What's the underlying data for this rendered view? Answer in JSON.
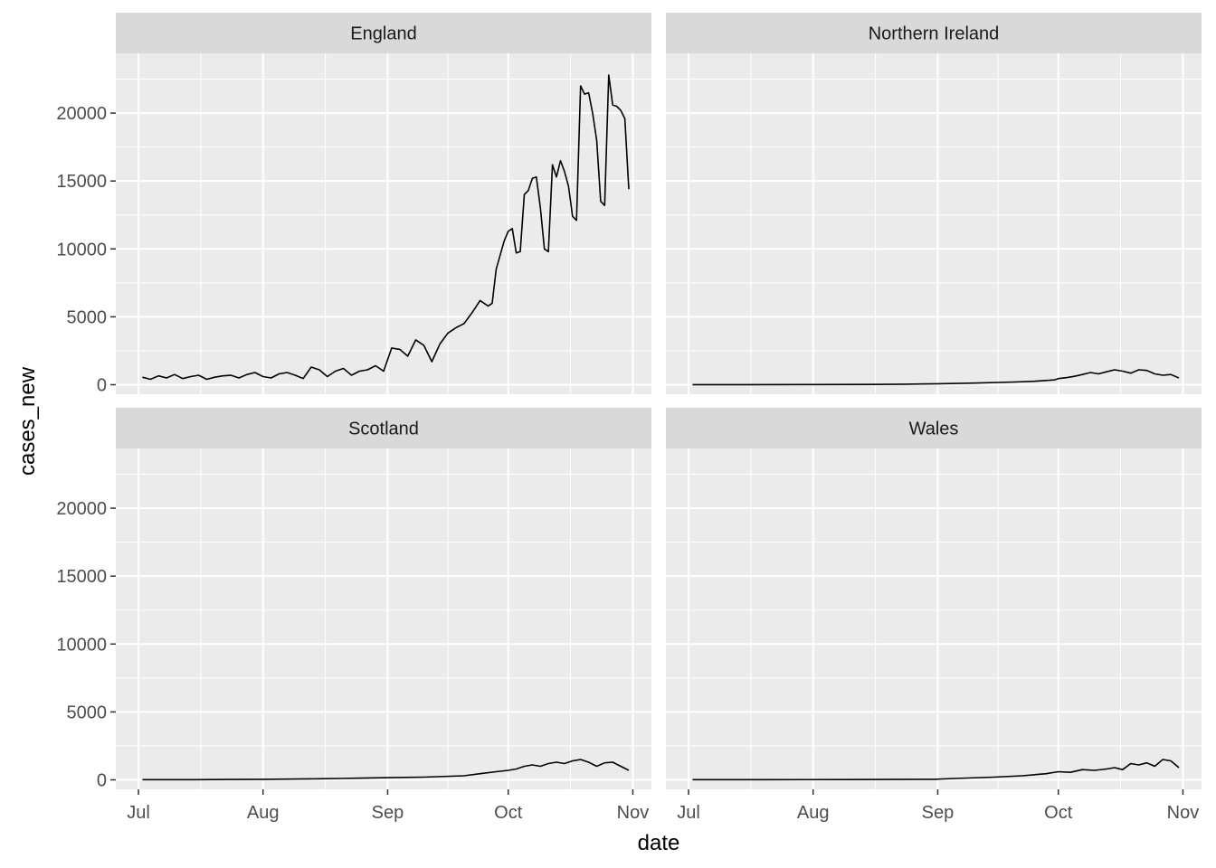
{
  "chart_data": {
    "type": "line",
    "facet": "grid-2x2",
    "xlabel": "date",
    "ylabel": "cases_new",
    "xlim": [
      "2020-07-01",
      "2020-10-31"
    ],
    "ylim": [
      -700,
      24400
    ],
    "x_ticks": [
      {
        "date": "2020-07-01",
        "label": "Jul"
      },
      {
        "date": "2020-08-01",
        "label": "Aug"
      },
      {
        "date": "2020-09-01",
        "label": "Sep"
      },
      {
        "date": "2020-10-01",
        "label": "Oct"
      },
      {
        "date": "2020-11-01",
        "label": "Nov"
      }
    ],
    "y_ticks": [
      0,
      5000,
      10000,
      15000,
      20000
    ],
    "y_tick_labels": [
      "0",
      "5000",
      "10000",
      "15000",
      "20000"
    ],
    "grid": true,
    "colors": {
      "panel": "#ebebeb",
      "strip": "#d9d9d9",
      "line": "#000000",
      "grid": "#ffffff",
      "axis_text": "#4d4d4d"
    },
    "panels": [
      {
        "name": "England",
        "x": [
          "2020-07-02",
          "2020-07-04",
          "2020-07-06",
          "2020-07-08",
          "2020-07-10",
          "2020-07-12",
          "2020-07-14",
          "2020-07-16",
          "2020-07-18",
          "2020-07-20",
          "2020-07-22",
          "2020-07-24",
          "2020-07-26",
          "2020-07-28",
          "2020-07-30",
          "2020-08-01",
          "2020-08-03",
          "2020-08-05",
          "2020-08-07",
          "2020-08-09",
          "2020-08-11",
          "2020-08-13",
          "2020-08-15",
          "2020-08-17",
          "2020-08-19",
          "2020-08-21",
          "2020-08-23",
          "2020-08-25",
          "2020-08-27",
          "2020-08-29",
          "2020-08-31",
          "2020-09-02",
          "2020-09-04",
          "2020-09-06",
          "2020-09-08",
          "2020-09-10",
          "2020-09-12",
          "2020-09-14",
          "2020-09-16",
          "2020-09-18",
          "2020-09-20",
          "2020-09-22",
          "2020-09-24",
          "2020-09-26",
          "2020-09-27",
          "2020-09-28",
          "2020-09-30",
          "2020-10-01",
          "2020-10-02",
          "2020-10-03",
          "2020-10-04",
          "2020-10-05",
          "2020-10-06",
          "2020-10-07",
          "2020-10-08",
          "2020-10-09",
          "2020-10-10",
          "2020-10-11",
          "2020-10-12",
          "2020-10-13",
          "2020-10-14",
          "2020-10-15",
          "2020-10-16",
          "2020-10-17",
          "2020-10-18",
          "2020-10-19",
          "2020-10-20",
          "2020-10-21",
          "2020-10-22",
          "2020-10-23",
          "2020-10-24",
          "2020-10-25",
          "2020-10-26",
          "2020-10-27",
          "2020-10-28",
          "2020-10-29",
          "2020-10-30",
          "2020-10-31"
        ],
        "values": [
          550,
          400,
          650,
          500,
          750,
          450,
          600,
          700,
          400,
          550,
          650,
          700,
          500,
          750,
          900,
          600,
          500,
          800,
          900,
          700,
          450,
          1300,
          1100,
          600,
          1000,
          1200,
          700,
          1000,
          1100,
          1400,
          1000,
          2700,
          2600,
          2100,
          3300,
          2900,
          1700,
          3000,
          3800,
          4200,
          4500,
          5300,
          6200,
          5800,
          6000,
          8500,
          10600,
          11300,
          11500,
          9700,
          9800,
          14000,
          14300,
          15200,
          15300,
          13000,
          10000,
          9800,
          16200,
          15300,
          16500,
          15700,
          14600,
          12400,
          12100,
          22000,
          21400,
          21500,
          20000,
          18000,
          13500,
          13200,
          22800,
          20600,
          20500,
          20200,
          19600,
          14400
        ]
      },
      {
        "name": "Northern Ireland",
        "x": [
          "2020-07-02",
          "2020-07-15",
          "2020-08-01",
          "2020-08-15",
          "2020-08-24",
          "2020-09-01",
          "2020-09-10",
          "2020-09-20",
          "2020-09-25",
          "2020-09-30",
          "2020-10-01",
          "2020-10-03",
          "2020-10-05",
          "2020-10-07",
          "2020-10-09",
          "2020-10-11",
          "2020-10-13",
          "2020-10-15",
          "2020-10-17",
          "2020-10-19",
          "2020-10-21",
          "2020-10-23",
          "2020-10-25",
          "2020-10-27",
          "2020-10-29",
          "2020-10-31"
        ],
        "values": [
          5,
          5,
          10,
          20,
          40,
          70,
          120,
          200,
          250,
          350,
          450,
          520,
          620,
          750,
          900,
          800,
          950,
          1100,
          1000,
          850,
          1100,
          1050,
          800,
          700,
          750,
          500
        ]
      },
      {
        "name": "Scotland",
        "x": [
          "2020-07-02",
          "2020-07-15",
          "2020-08-01",
          "2020-08-15",
          "2020-08-24",
          "2020-09-01",
          "2020-09-10",
          "2020-09-20",
          "2020-09-24",
          "2020-09-28",
          "2020-10-01",
          "2020-10-03",
          "2020-10-05",
          "2020-10-07",
          "2020-10-09",
          "2020-10-11",
          "2020-10-13",
          "2020-10-15",
          "2020-10-17",
          "2020-10-19",
          "2020-10-21",
          "2020-10-23",
          "2020-10-25",
          "2020-10-27",
          "2020-10-29",
          "2020-10-31"
        ],
        "values": [
          10,
          10,
          40,
          80,
          120,
          160,
          200,
          300,
          450,
          600,
          700,
          800,
          1000,
          1100,
          1000,
          1200,
          1300,
          1200,
          1400,
          1500,
          1300,
          1000,
          1250,
          1300,
          1000,
          700
        ]
      },
      {
        "name": "Wales",
        "x": [
          "2020-07-02",
          "2020-07-20",
          "2020-08-10",
          "2020-08-31",
          "2020-09-05",
          "2020-09-15",
          "2020-09-22",
          "2020-09-28",
          "2020-10-01",
          "2020-10-04",
          "2020-10-07",
          "2020-10-10",
          "2020-10-13",
          "2020-10-15",
          "2020-10-17",
          "2020-10-19",
          "2020-10-21",
          "2020-10-23",
          "2020-10-25",
          "2020-10-27",
          "2020-10-29",
          "2020-10-31"
        ],
        "values": [
          10,
          10,
          20,
          40,
          100,
          200,
          300,
          450,
          600,
          550,
          750,
          700,
          800,
          900,
          750,
          1200,
          1100,
          1250,
          1000,
          1500,
          1400,
          900
        ]
      }
    ]
  }
}
